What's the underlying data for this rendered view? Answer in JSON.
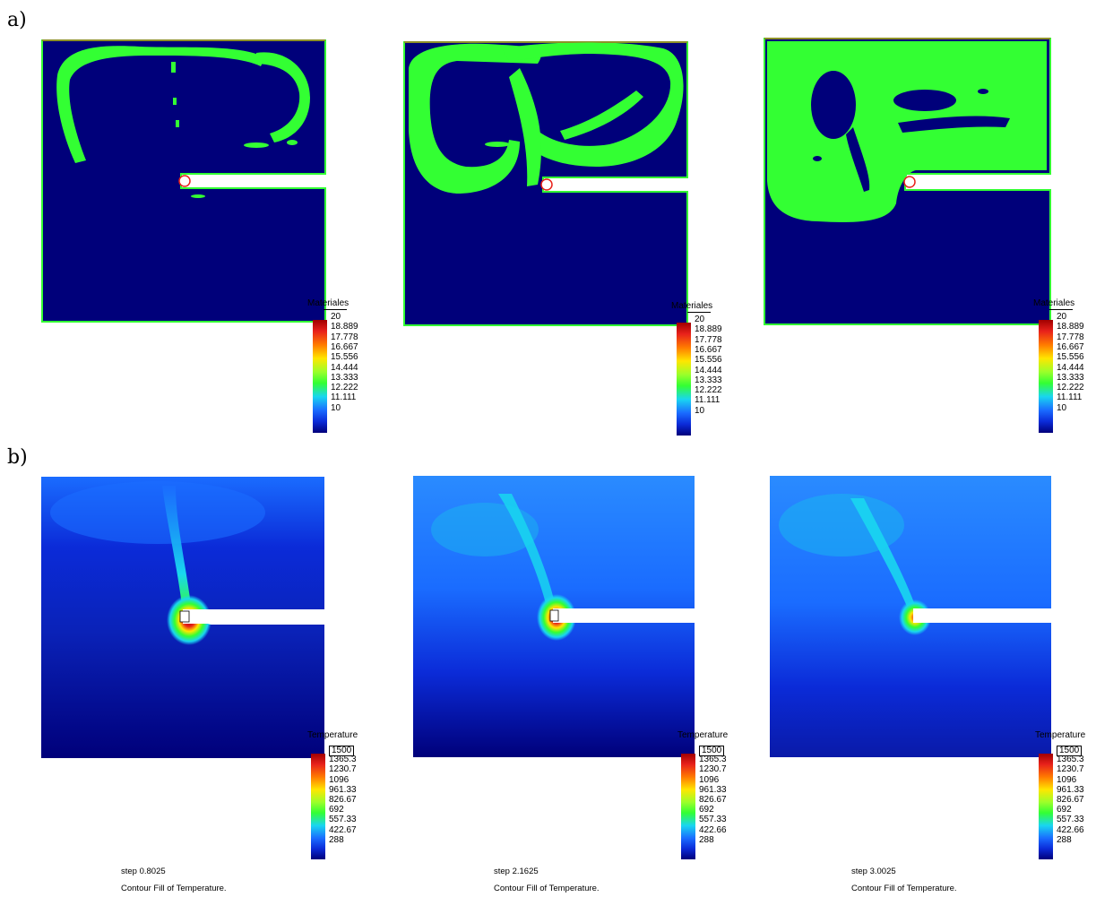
{
  "row_labels": {
    "a": "a)",
    "b": "b)"
  },
  "materials_legend": {
    "title": "Materiales",
    "ticks": [
      "20",
      "18.889",
      "17.778",
      "16.667",
      "15.556",
      "14.444",
      "13.333",
      "12.222",
      "11.111",
      "10"
    ]
  },
  "temperature_legend": {
    "title": "Temperature",
    "ticks_1": [
      "1500",
      "1365.3",
      "1230.7",
      "1096",
      "961.33",
      "826.67",
      "692",
      "557.33",
      "422.67",
      "288"
    ],
    "ticks_2": [
      "1500",
      "1365.3",
      "1230.7",
      "1096",
      "961.33",
      "826.67",
      "692",
      "557.33",
      "422.66",
      "288"
    ],
    "ticks_3": [
      "1500",
      "1365.3",
      "1230.7",
      "1096",
      "961.33",
      "826.67",
      "692",
      "557.33",
      "422.66",
      "288"
    ]
  },
  "captions": [
    {
      "step": "step 0.8025",
      "desc": "Contour Fill of Temperature."
    },
    {
      "step": "step 2.1625",
      "desc": "Contour Fill of Temperature."
    },
    {
      "step": "step 3.0025",
      "desc": "Contour Fill of Temperature."
    }
  ],
  "colors": {
    "navy": "#00007a",
    "blue": "#0b2bd8",
    "green": "#33ff33",
    "cyan": "#19d6f0",
    "red": "#e8211b",
    "yellow": "#ffe600"
  }
}
